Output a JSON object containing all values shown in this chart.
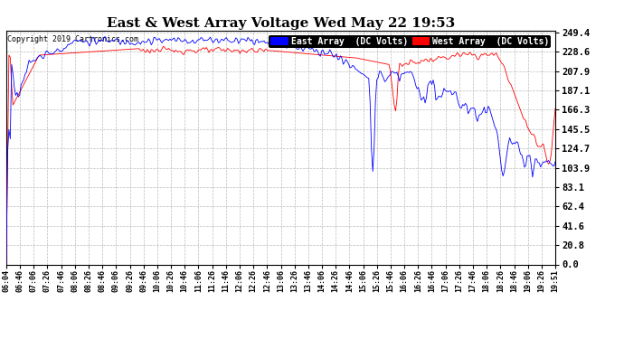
{
  "title": "East & West Array Voltage Wed May 22 19:53",
  "copyright": "Copyright 2019 Cartronics.com",
  "yticks": [
    0.0,
    20.8,
    41.6,
    62.4,
    83.1,
    103.9,
    124.7,
    145.5,
    166.3,
    187.1,
    207.9,
    228.6,
    249.4
  ],
  "ymin": 0.0,
  "ymax": 249.4,
  "east_label": "East Array  (DC Volts)",
  "west_label": "West Array  (DC Volts)",
  "east_color": "#0000ff",
  "west_color": "#ff0000",
  "east_bg": "#0000cc",
  "west_bg": "#cc0000",
  "bg_color": "#ffffff",
  "grid_color": "#bbbbbb",
  "title_fontsize": 11,
  "figsize": [
    6.9,
    3.75
  ],
  "dpi": 100,
  "xtick_labels": [
    "06:04",
    "06:46",
    "07:06",
    "07:26",
    "07:46",
    "08:06",
    "08:26",
    "08:46",
    "09:06",
    "09:26",
    "09:46",
    "10:06",
    "10:26",
    "10:46",
    "11:06",
    "11:26",
    "11:46",
    "12:06",
    "12:26",
    "12:46",
    "13:06",
    "13:26",
    "13:46",
    "14:06",
    "14:26",
    "14:46",
    "15:06",
    "15:26",
    "15:46",
    "16:06",
    "16:26",
    "16:46",
    "17:06",
    "17:26",
    "17:46",
    "18:06",
    "18:26",
    "18:46",
    "19:06",
    "19:26",
    "19:51"
  ]
}
